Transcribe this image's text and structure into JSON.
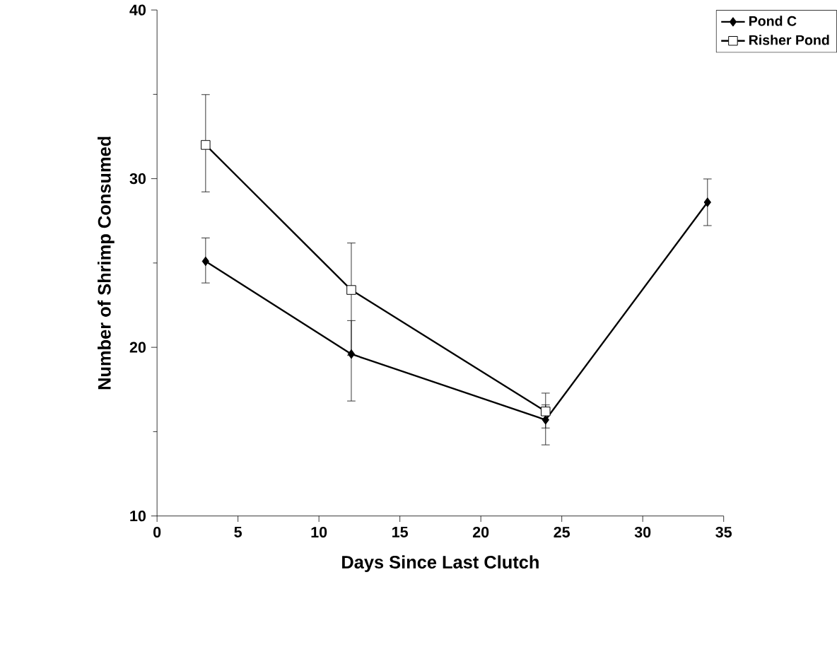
{
  "chart_data": {
    "type": "line",
    "xlabel": "Days Since Last Clutch",
    "ylabel": "Number of Shrimp Consumed",
    "xlim": [
      0,
      35
    ],
    "xticks": [
      0,
      5,
      10,
      15,
      20,
      25,
      30,
      35
    ],
    "ylim": [
      10,
      40
    ],
    "yticks": [
      10,
      20,
      30,
      40
    ],
    "legend": "top right",
    "line_style": "solid",
    "grid": false,
    "series": [
      {
        "name": "Pond C",
        "color": "#000000",
        "marker": "diamond",
        "x": [
          3,
          12,
          24,
          34
        ],
        "values": [
          25.1,
          19.6,
          15.7,
          28.6
        ],
        "errors": [
          [
            23.8,
            26.5
          ],
          [
            16.8,
            21.6
          ],
          [
            14.2,
            16.6
          ],
          [
            27.2,
            30
          ]
        ]
      },
      {
        "name": "Risher Pond",
        "color": "#000000",
        "marker": "square",
        "x": [
          3,
          12,
          24
        ],
        "values": [
          32,
          23.4,
          16.2
        ],
        "errors": [
          [
            29.2,
            35
          ],
          [
            19.5,
            26.2
          ],
          [
            15.2,
            17.3
          ]
        ]
      }
    ]
  }
}
